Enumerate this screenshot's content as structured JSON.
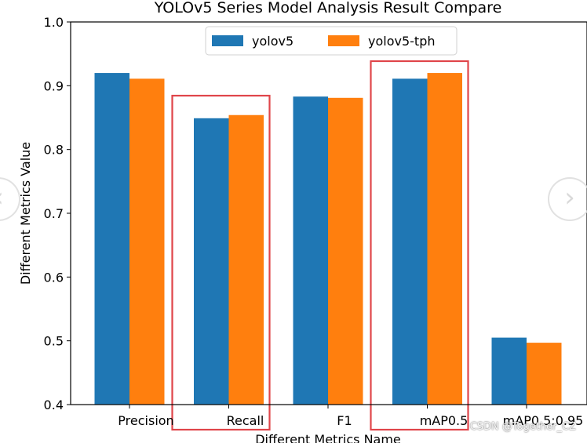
{
  "chart_data": {
    "type": "bar",
    "title": "YOLOv5 Series Model Analysis Result Compare",
    "xlabel": "Different Metrics Name",
    "ylabel": "Different Metrics Value",
    "categories": [
      "Precision",
      "Recall",
      "F1",
      "mAP0.5",
      "mAP0.5:0.95"
    ],
    "series": [
      {
        "name": "yolov5",
        "color": "#1f77b4",
        "values": [
          0.92,
          0.849,
          0.883,
          0.911,
          0.505
        ]
      },
      {
        "name": "yolov5-tph",
        "color": "#ff7f0e",
        "values": [
          0.911,
          0.854,
          0.881,
          0.92,
          0.497
        ]
      }
    ],
    "ylim": [
      0.4,
      1.0
    ],
    "yticks": [
      "0.4",
      "0.5",
      "0.6",
      "0.7",
      "0.8",
      "0.9",
      "1.0"
    ],
    "grid": false,
    "legend_position": "top-center",
    "highlighted_categories": [
      "Recall",
      "mAP0.5"
    ],
    "highlight_color": "#e0454a"
  },
  "watermark": "CSDN @Together_CZ",
  "nav": {
    "prev_icon": "chevron-left-icon",
    "next_icon": "chevron-right-icon"
  }
}
